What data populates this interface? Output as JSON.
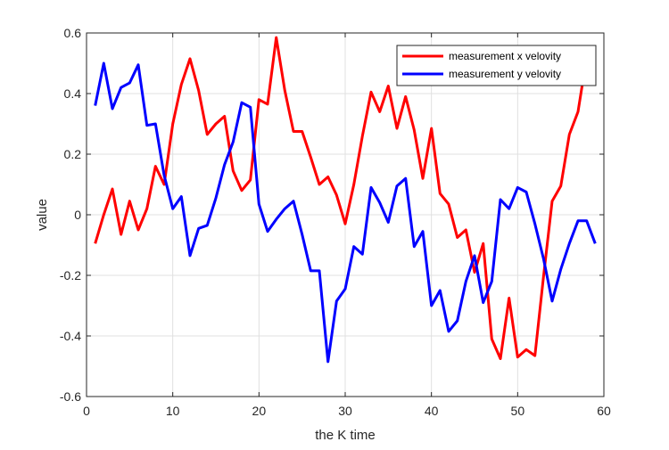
{
  "chart_data": {
    "type": "line",
    "title": "",
    "xlabel": "the K time",
    "ylabel": "value",
    "xlim": [
      0,
      60
    ],
    "ylim": [
      -0.6,
      0.6
    ],
    "xticks": [
      0,
      10,
      20,
      30,
      40,
      50,
      60
    ],
    "yticks": [
      -0.6,
      -0.4,
      -0.2,
      0,
      0.2,
      0.4,
      0.6
    ],
    "xtick_labels": [
      "0",
      "10",
      "20",
      "30",
      "40",
      "50",
      "60"
    ],
    "ytick_labels": [
      "-0.6",
      "-0.4",
      "-0.2",
      "0",
      "0.2",
      "0.4",
      "0.6"
    ],
    "grid": true,
    "legend_position": "top-right",
    "series": [
      {
        "name": "measurement x velovity",
        "color": "#ff0000",
        "x": [
          1,
          2,
          3,
          4,
          5,
          6,
          7,
          8,
          9,
          10,
          11,
          12,
          13,
          14,
          15,
          16,
          17,
          18,
          19,
          20,
          21,
          22,
          23,
          24,
          25,
          26,
          27,
          28,
          29,
          30,
          31,
          32,
          33,
          34,
          35,
          36,
          37,
          38,
          39,
          40,
          41,
          42,
          43,
          44,
          45,
          46,
          47,
          48,
          49,
          50,
          51,
          52,
          53,
          54,
          55,
          56,
          57,
          58,
          59
        ],
        "y": [
          -0.095,
          0.0,
          0.085,
          -0.065,
          0.045,
          -0.05,
          0.02,
          0.16,
          0.1,
          0.3,
          0.43,
          0.515,
          0.41,
          0.265,
          0.3,
          0.325,
          0.145,
          0.08,
          0.115,
          0.38,
          0.365,
          0.585,
          0.41,
          0.275,
          0.275,
          0.19,
          0.1,
          0.125,
          0.065,
          -0.03,
          0.1,
          0.26,
          0.405,
          0.34,
          0.425,
          0.285,
          0.39,
          0.28,
          0.12,
          0.285,
          0.07,
          0.035,
          -0.075,
          -0.05,
          -0.19,
          -0.095,
          -0.41,
          -0.475,
          -0.275,
          -0.47,
          -0.445,
          -0.465,
          -0.205,
          0.045,
          0.095,
          0.265,
          0.34,
          0.52,
          0.48
        ]
      },
      {
        "name": "measurement y velovity",
        "color": "#0000ff",
        "x": [
          1,
          2,
          3,
          4,
          5,
          6,
          7,
          8,
          9,
          10,
          11,
          12,
          13,
          14,
          15,
          16,
          17,
          18,
          19,
          20,
          21,
          22,
          23,
          24,
          25,
          26,
          27,
          28,
          29,
          30,
          31,
          32,
          33,
          34,
          35,
          36,
          37,
          38,
          39,
          40,
          41,
          42,
          43,
          44,
          45,
          46,
          47,
          48,
          49,
          50,
          51,
          52,
          53,
          54,
          55,
          56,
          57,
          58,
          59
        ],
        "y": [
          0.36,
          0.5,
          0.35,
          0.42,
          0.435,
          0.495,
          0.295,
          0.3,
          0.13,
          0.02,
          0.06,
          -0.135,
          -0.045,
          -0.035,
          0.055,
          0.165,
          0.24,
          0.37,
          0.355,
          0.035,
          -0.055,
          -0.015,
          0.02,
          0.045,
          -0.065,
          -0.185,
          -0.185,
          -0.485,
          -0.285,
          -0.245,
          -0.105,
          -0.13,
          0.09,
          0.04,
          -0.025,
          0.095,
          0.12,
          -0.105,
          -0.055,
          -0.3,
          -0.25,
          -0.385,
          -0.35,
          -0.22,
          -0.135,
          -0.29,
          -0.22,
          0.05,
          0.02,
          0.09,
          0.075,
          -0.03,
          -0.145,
          -0.285,
          -0.18,
          -0.095,
          -0.02,
          -0.02,
          -0.095
        ]
      }
    ]
  }
}
